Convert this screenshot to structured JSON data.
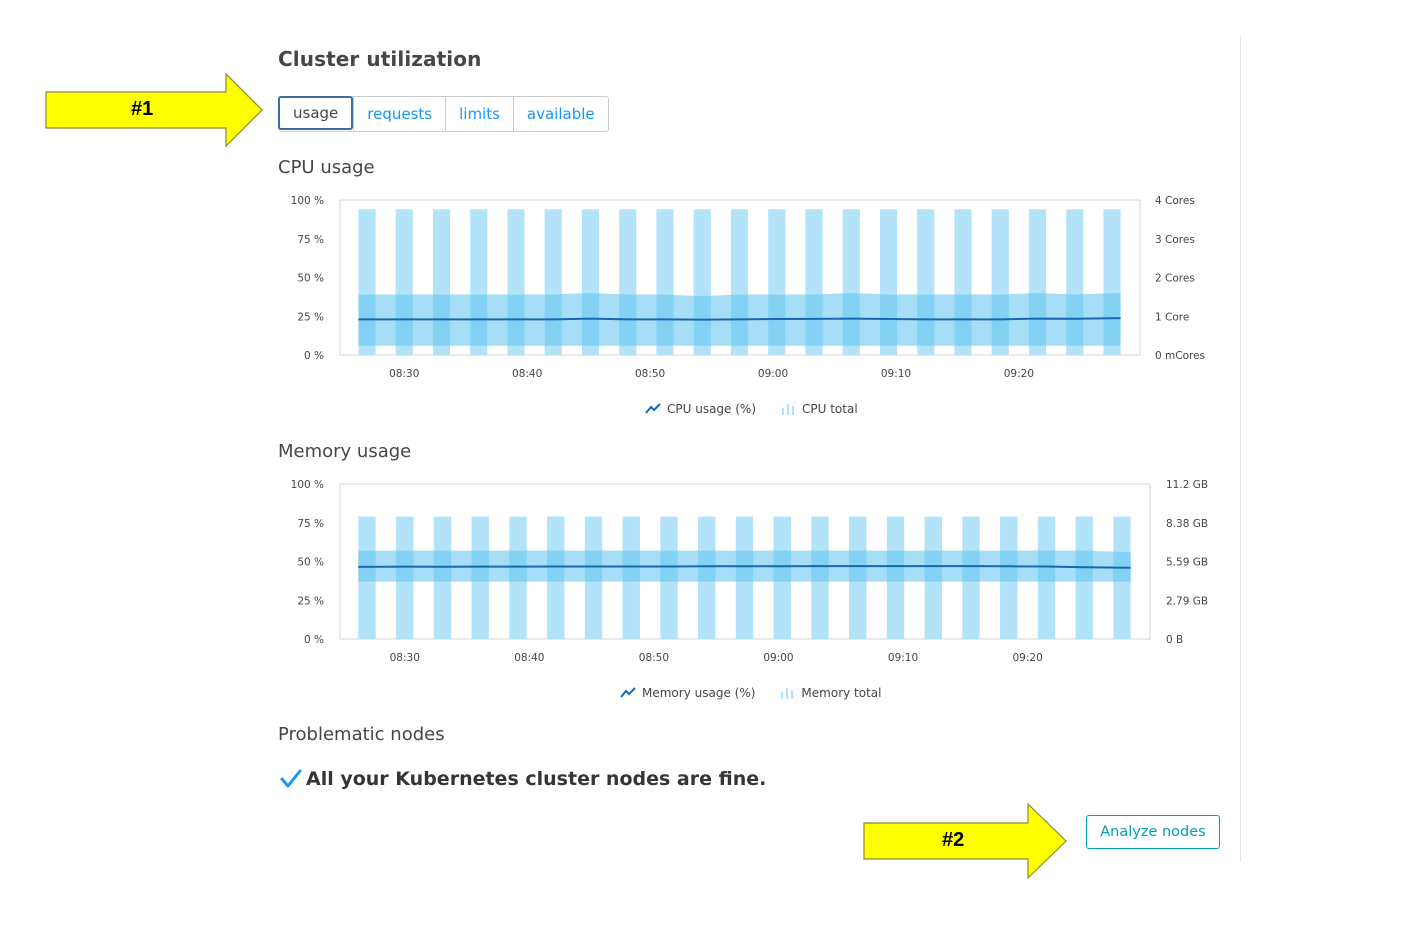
{
  "page": {
    "title": "Cluster utilization",
    "tabs": [
      {
        "label": "usage",
        "active": true
      },
      {
        "label": "requests",
        "active": false
      },
      {
        "label": "limits",
        "active": false
      },
      {
        "label": "available",
        "active": false
      }
    ]
  },
  "callouts": {
    "first": "#1",
    "second": "#2"
  },
  "cpu": {
    "title": "CPU usage",
    "legend": {
      "line": "CPU usage (%)",
      "bar": "CPU total"
    }
  },
  "memory": {
    "title": "Memory usage",
    "legend": {
      "line": "Memory usage (%)",
      "bar": "Memory total"
    }
  },
  "problematic": {
    "title": "Problematic nodes",
    "status_text": "All your Kubernetes cluster nodes are fine."
  },
  "analyze_button": "Analyze nodes",
  "colors": {
    "bar_light": "#b3e3f9",
    "band": "#5cc2f0",
    "line": "#1767b3",
    "tab_link": "#1496ff",
    "button": "#00a1b2",
    "check": "#1496ff",
    "callout": "#ffff00"
  },
  "chart_data": [
    {
      "type": "bar",
      "name": "cpu",
      "x_ticks": [
        "08:30",
        "08:40",
        "08:50",
        "09:00",
        "09:10",
        "09:20"
      ],
      "y_left_ticks": [
        "100 %",
        "75 %",
        "50 %",
        "25 %",
        "0 %"
      ],
      "y_right_ticks": [
        "4 Cores",
        "3 Cores",
        "2 Cores",
        "1 Core",
        "0 mCores"
      ],
      "ylim": [
        0,
        100
      ],
      "bar_count": 21,
      "total_pct": 94,
      "band_low_pct": 6,
      "band_high_pct": [
        39,
        39,
        39,
        39,
        39,
        39,
        40,
        39,
        39,
        38,
        39,
        39,
        39,
        40,
        39,
        39,
        39,
        39,
        40,
        39,
        40
      ],
      "series": [
        {
          "name": "CPU usage (%)",
          "values": [
            23,
            23,
            23,
            23,
            23,
            23,
            23.5,
            23,
            23,
            22.8,
            23,
            23.2,
            23.3,
            23.5,
            23.2,
            23,
            23,
            23,
            23.5,
            23.4,
            23.8
          ]
        }
      ]
    },
    {
      "type": "bar",
      "name": "memory",
      "x_ticks": [
        "08:30",
        "08:40",
        "08:50",
        "09:00",
        "09:10",
        "09:20"
      ],
      "y_left_ticks": [
        "100 %",
        "75 %",
        "50 %",
        "25 %",
        "0 %"
      ],
      "y_right_ticks": [
        "11.2 GB",
        "8.38 GB",
        "5.59 GB",
        "2.79 GB",
        "0 B"
      ],
      "ylim": [
        0,
        100
      ],
      "bar_count": 21,
      "total_pct": 79,
      "band_low_pct": 37,
      "band_high_pct": [
        57,
        57,
        57,
        57,
        57,
        57,
        57,
        57,
        57,
        57,
        57,
        57,
        57,
        57,
        57,
        57,
        57,
        57,
        57,
        57,
        56
      ],
      "series": [
        {
          "name": "Memory usage (%)",
          "values": [
            46.5,
            46.7,
            46.6,
            46.7,
            46.7,
            46.8,
            46.8,
            46.8,
            46.8,
            46.9,
            46.9,
            46.9,
            47,
            47,
            47,
            47,
            47,
            46.9,
            46.8,
            46.3,
            46
          ]
        }
      ]
    }
  ]
}
